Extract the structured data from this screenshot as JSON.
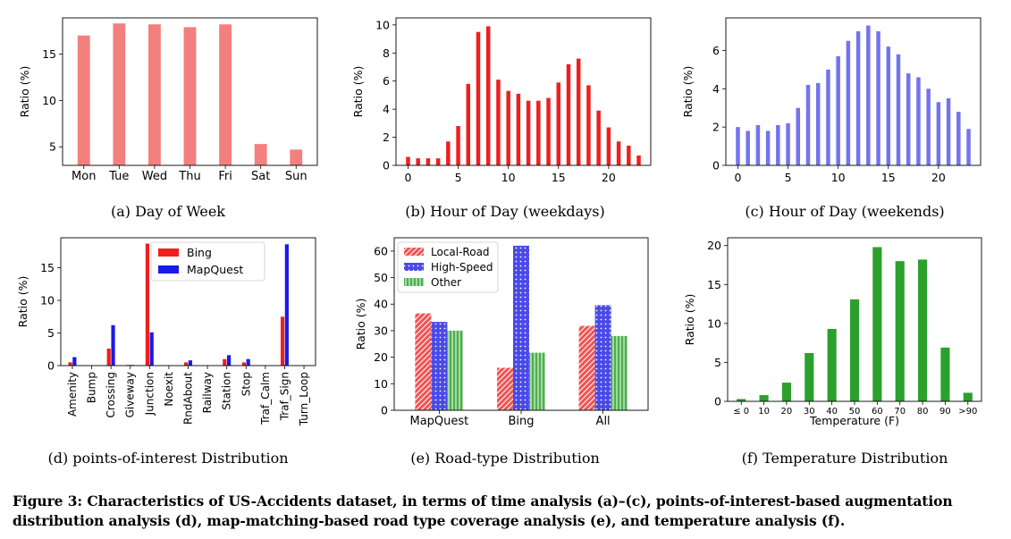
{
  "colors": {
    "salmon": "#f47f7f",
    "red": "#f01e1e",
    "blue": "#1a1ae6",
    "softblue": "#7373f0",
    "green": "#2ca02c",
    "local_road": "#f25454",
    "high_speed": "#4a4ae8",
    "other": "#4caf4c"
  },
  "figure_caption": "Figure 3: Characteristics of US-Accidents dataset, in terms of time analysis (a)–(c), points-of-interest-based augmentation distribution analysis (d), map-matching-based road type coverage analysis (e), and temperature analysis (f).",
  "chart_data": [
    {
      "id": "a",
      "type": "bar",
      "caption": "(a) Day of Week",
      "categories": [
        "Mon",
        "Tue",
        "Wed",
        "Thu",
        "Fri",
        "Sat",
        "Sun"
      ],
      "values": [
        17.0,
        18.3,
        18.2,
        17.9,
        18.2,
        5.3,
        4.7
      ],
      "xlabel": "",
      "ylabel": "Ratio (%)",
      "ylim": [
        3,
        18.9
      ],
      "yticks": [
        5,
        10,
        15
      ],
      "grid": false,
      "color": "#f47f7f"
    },
    {
      "id": "b",
      "type": "bar",
      "caption": "(b) Hour of Day (weekdays)",
      "x": [
        0,
        1,
        2,
        3,
        4,
        5,
        6,
        7,
        8,
        9,
        10,
        11,
        12,
        13,
        14,
        15,
        16,
        17,
        18,
        19,
        20,
        21,
        22,
        23
      ],
      "values": [
        0.6,
        0.5,
        0.5,
        0.5,
        1.7,
        2.8,
        5.8,
        9.5,
        9.9,
        6.1,
        5.3,
        5.1,
        4.6,
        4.6,
        4.8,
        5.9,
        7.2,
        7.6,
        5.7,
        3.9,
        2.7,
        1.7,
        1.4,
        0.7
      ],
      "xlabel": "",
      "ylabel": "Ratio (%)",
      "xlim": [
        -1.2,
        24.2
      ],
      "ylim": [
        0,
        10.5
      ],
      "xticks": [
        0,
        5,
        10,
        15,
        20
      ],
      "yticks": [
        0,
        2,
        4,
        6,
        8,
        10
      ],
      "grid": false,
      "color": "#f01e1e"
    },
    {
      "id": "c",
      "type": "bar",
      "caption": "(c) Hour of Day (weekends)",
      "x": [
        0,
        1,
        2,
        3,
        4,
        5,
        6,
        7,
        8,
        9,
        10,
        11,
        12,
        13,
        14,
        15,
        16,
        17,
        18,
        19,
        20,
        21,
        22,
        23
      ],
      "values": [
        2.0,
        1.8,
        2.1,
        1.8,
        2.1,
        2.2,
        3.0,
        4.2,
        4.3,
        5.0,
        5.7,
        6.5,
        7.0,
        7.3,
        7.0,
        6.2,
        5.8,
        4.8,
        4.6,
        4.0,
        3.3,
        3.5,
        2.8,
        1.9
      ],
      "xlabel": "",
      "ylabel": "Ratio (%)",
      "xlim": [
        -1.2,
        24.2
      ],
      "ylim": [
        0,
        7.7
      ],
      "xticks": [
        0,
        5,
        10,
        15,
        20
      ],
      "yticks": [
        0,
        2,
        4,
        6
      ],
      "grid": false,
      "color": "#7373f0"
    },
    {
      "id": "d",
      "type": "bar",
      "caption": "(d) points-of-interest Distribution",
      "categories": [
        "Amenity",
        "Bump",
        "Crossing",
        "Giveway",
        "Junction",
        "Noexit",
        "RndAbout",
        "Railway",
        "Station",
        "Stop",
        "Traf_Calm",
        "Traf_Sign",
        "Turn_Loop"
      ],
      "series": [
        {
          "name": "Bing",
          "values": [
            0.5,
            0.0,
            2.6,
            0.1,
            18.7,
            0.0,
            0.5,
            0.0,
            1.0,
            0.5,
            0.0,
            7.5,
            0.0
          ],
          "color": "#f01e1e"
        },
        {
          "name": "MapQuest",
          "values": [
            1.3,
            0.0,
            6.2,
            0.1,
            5.1,
            0.0,
            0.8,
            0.0,
            1.6,
            1.0,
            0.0,
            18.6,
            0.0
          ],
          "color": "#1a1ae6"
        }
      ],
      "xlabel": "",
      "ylabel": "Ratio (%)",
      "ylim": [
        0,
        19.6
      ],
      "yticks": [
        0,
        5,
        10,
        15
      ],
      "legend": "top-right",
      "grid": false
    },
    {
      "id": "e",
      "type": "bar",
      "caption": "(e) Road-type Distribution",
      "categories": [
        "MapQuest",
        "Bing",
        "All"
      ],
      "series": [
        {
          "name": "Local-Road",
          "values": [
            36.5,
            16.0,
            31.8
          ],
          "color": "#f25454",
          "hatch": "diagonal"
        },
        {
          "name": "High-Speed",
          "values": [
            33.3,
            62.0,
            39.6
          ],
          "color": "#4a4ae8",
          "hatch": "dots"
        },
        {
          "name": "Other",
          "values": [
            30.0,
            21.7,
            28.0
          ],
          "color": "#4caf4c",
          "hatch": "vertical"
        }
      ],
      "xlabel": "",
      "ylabel": "Ratio (%)",
      "ylim": [
        0,
        65
      ],
      "yticks": [
        0,
        10,
        20,
        30,
        40,
        50,
        60
      ],
      "legend": "top-left",
      "grid": false
    },
    {
      "id": "f",
      "type": "bar",
      "caption": "(f) Temperature Distribution",
      "categories": [
        "≤ 0",
        "10",
        "20",
        "30",
        "40",
        "50",
        "60",
        "70",
        "80",
        "90",
        ">90"
      ],
      "values": [
        0.3,
        0.8,
        2.4,
        6.2,
        9.3,
        13.1,
        19.8,
        18.0,
        18.2,
        6.9,
        1.1
      ],
      "xlabel": "Temperature (F)",
      "ylabel": "Ratio (%)",
      "ylim": [
        0,
        21
      ],
      "yticks": [
        0,
        5,
        10,
        15,
        20
      ],
      "grid": false,
      "color": "#2ca02c"
    }
  ]
}
